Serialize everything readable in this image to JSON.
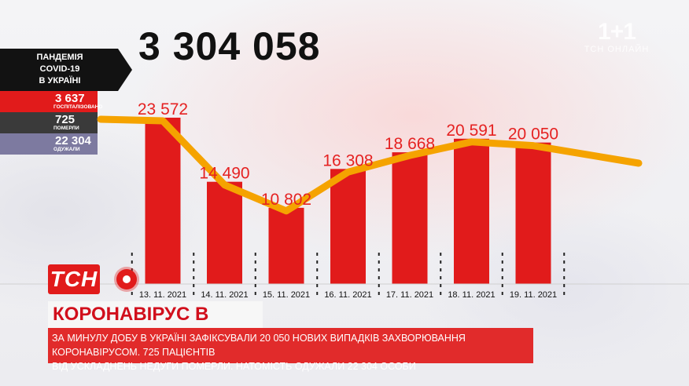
{
  "total": "3 304 058",
  "logo": {
    "main": "1+1",
    "sub": "ТСН ОНЛАЙН"
  },
  "panel": {
    "title_lines": [
      "ПАНДЕМІЯ",
      "COVID-19",
      "В УКРАЇНІ"
    ],
    "stats": [
      {
        "value": "3 637",
        "label": "ГОСПІТАЛІЗОВАНО"
      },
      {
        "value": "725",
        "label": "ПОМЕРЛИ"
      },
      {
        "value": "22 304",
        "label": "ОДУЖАЛИ"
      }
    ]
  },
  "chart_data": {
    "type": "bar",
    "categories": [
      "13. 11. 2021",
      "14. 11. 2021",
      "15. 11. 2021",
      "16. 11. 2021",
      "17. 11. 2021",
      "18. 11. 2021",
      "19. 11. 2021"
    ],
    "values": [
      23572,
      14490,
      10802,
      16308,
      18668,
      20591,
      20050
    ],
    "value_labels": [
      "23 572",
      "14 490",
      "10 802",
      "16 308",
      "18 668",
      "20 591",
      "20 050"
    ],
    "overlay_line": "trend",
    "colors": {
      "bar": "#e11b1b",
      "line": "#f5a300",
      "label": "#e52222"
    }
  },
  "brand": "ТСН",
  "headline": "КОРОНАВІРУС В УКРАЇНІ",
  "ticker_lines": [
    "ЗА МИНУЛУ ДОБУ В УКРАЇНІ ЗАФІКСУВАЛИ 20 050 НОВИХ ВИПАДКІВ ЗАХВОРЮВАННЯ КОРОНАВІРУСОМ. 725 ПАЦІЄНТІВ",
    "ВІД УСКЛАДНЕНЬ НЕДУГИ ПОМЕРЛИ. НАТОМІСТЬ ОДУЖАЛИ 22 304 ОСОБИ"
  ]
}
